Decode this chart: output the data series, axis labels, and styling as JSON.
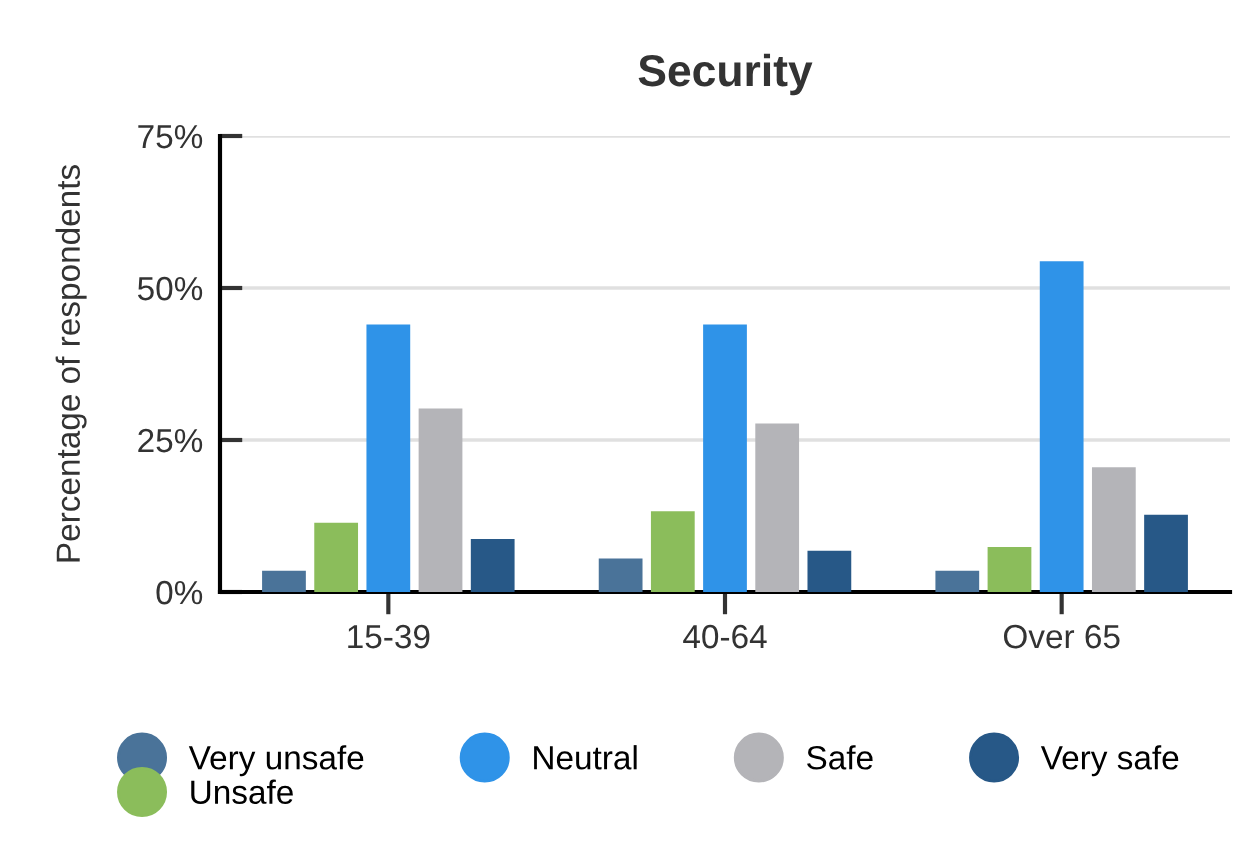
{
  "chart_data": {
    "type": "bar",
    "title": "Security",
    "ylabel": "Percentage of respondents",
    "categories": [
      "15-39",
      "40-64",
      "Over 65"
    ],
    "series": [
      {
        "name": "Very unsafe",
        "color": "#4a7399",
        "values": [
          3.5,
          5.5,
          3.5
        ]
      },
      {
        "name": "Unsafe",
        "color": "#8bbd5b",
        "values": [
          11.4,
          13.3,
          7.4
        ]
      },
      {
        "name": "Neutral",
        "color": "#2f93e8",
        "values": [
          44,
          44,
          54.4
        ]
      },
      {
        "name": "Safe",
        "color": "#b4b4b8",
        "values": [
          30.2,
          27.7,
          20.5
        ]
      },
      {
        "name": "Very safe",
        "color": "#275887",
        "values": [
          8.7,
          6.8,
          12.7
        ]
      }
    ],
    "ylim": [
      0,
      75
    ],
    "yticks": [
      {
        "value": 0,
        "label": "0%"
      },
      {
        "value": 25,
        "label": "25%"
      },
      {
        "value": 50,
        "label": "50%"
      },
      {
        "value": 75,
        "label": "75%"
      }
    ],
    "grid": "y",
    "legend": "bottom"
  }
}
